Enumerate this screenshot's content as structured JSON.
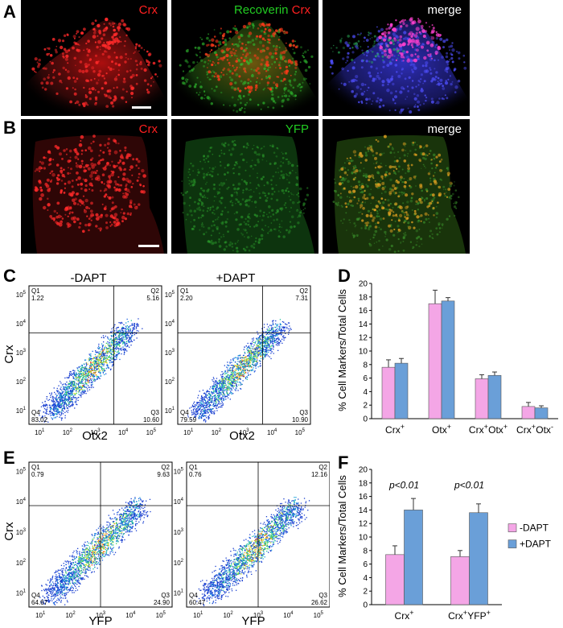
{
  "panel_letters": {
    "a": "A",
    "b": "B",
    "c": "C",
    "d": "D",
    "e": "E",
    "f": "F"
  },
  "row_a": {
    "panel1": {
      "label": "Crx"
    },
    "panel2": {
      "label_green": "Recoverin",
      "label_red": "Crx"
    },
    "panel3": {
      "label": "merge"
    }
  },
  "row_b": {
    "panel1": {
      "label": "Crx"
    },
    "panel2": {
      "label": "YFP"
    },
    "panel3": {
      "label": "merge"
    }
  },
  "colors": {
    "red": "#ff2020",
    "green": "#22cc22",
    "pink": "#f4a6e6",
    "blue": "#6a9fd8",
    "white": "#ffffff"
  },
  "facs_c": {
    "plot1": {
      "title": "-DAPT",
      "xlabel": "Otx2",
      "ylabel": "Crx",
      "q1": "1.22",
      "q2": "5.16",
      "q3": "10.60",
      "q4": "83.02"
    },
    "plot2": {
      "title": "+DAPT",
      "xlabel": "Otx2",
      "q1": "2.20",
      "q2": "7.31",
      "q3": "10.90",
      "q4": "79.59"
    }
  },
  "facs_e": {
    "plot1": {
      "xlabel": "YFP",
      "ylabel": "Crx",
      "q1": "0.79",
      "q2": "9.63",
      "q3": "24.90",
      "q4": "64.67"
    },
    "plot2": {
      "xlabel": "YFP",
      "q1": "0.76",
      "q2": "12.16",
      "q3": "26.62",
      "q4": "60.47"
    }
  },
  "facs_common": {
    "q_names": [
      "Q1",
      "Q2",
      "Q3",
      "Q4"
    ],
    "tick_base": "10",
    "tick_exps": [
      "1",
      "2",
      "3",
      "4",
      "5"
    ]
  },
  "chart_data": [
    {
      "type": "bar",
      "panel": "D",
      "ylabel": "% Cell Markers/Total Cells",
      "ylim": [
        0,
        20
      ],
      "yticks": [
        0,
        2,
        4,
        6,
        8,
        10,
        12,
        14,
        16,
        18,
        20
      ],
      "categories": [
        "Crx+",
        "Otx+",
        "Crx+Otx+",
        "Crx+Otx-"
      ],
      "series": [
        {
          "values": [
            7.6,
            17.0,
            5.9,
            1.8
          ],
          "errors": [
            1.1,
            2.0,
            0.6,
            0.6
          ],
          "color": "#f4a6e6"
        },
        {
          "values": [
            8.2,
            17.4,
            6.4,
            1.6
          ],
          "errors": [
            0.7,
            0.5,
            0.5,
            0.3
          ],
          "color": "#6a9fd8"
        }
      ]
    },
    {
      "type": "bar",
      "panel": "F",
      "ylabel": "% Cell Markers/Total Cells",
      "ylim": [
        0,
        20
      ],
      "yticks": [
        0,
        2,
        4,
        6,
        8,
        10,
        12,
        14,
        16,
        18,
        20
      ],
      "categories": [
        "Crx+",
        "Crx+YFP+"
      ],
      "annotations": [
        "p<0.01",
        "p<0.01"
      ],
      "legend_position": "right",
      "series": [
        {
          "name": "-DAPT",
          "values": [
            7.4,
            7.1
          ],
          "errors": [
            1.3,
            0.9
          ],
          "color": "#f4a6e6"
        },
        {
          "name": "+DAPT",
          "values": [
            14.0,
            13.6
          ],
          "errors": [
            1.7,
            1.3
          ],
          "color": "#6a9fd8"
        }
      ]
    }
  ]
}
